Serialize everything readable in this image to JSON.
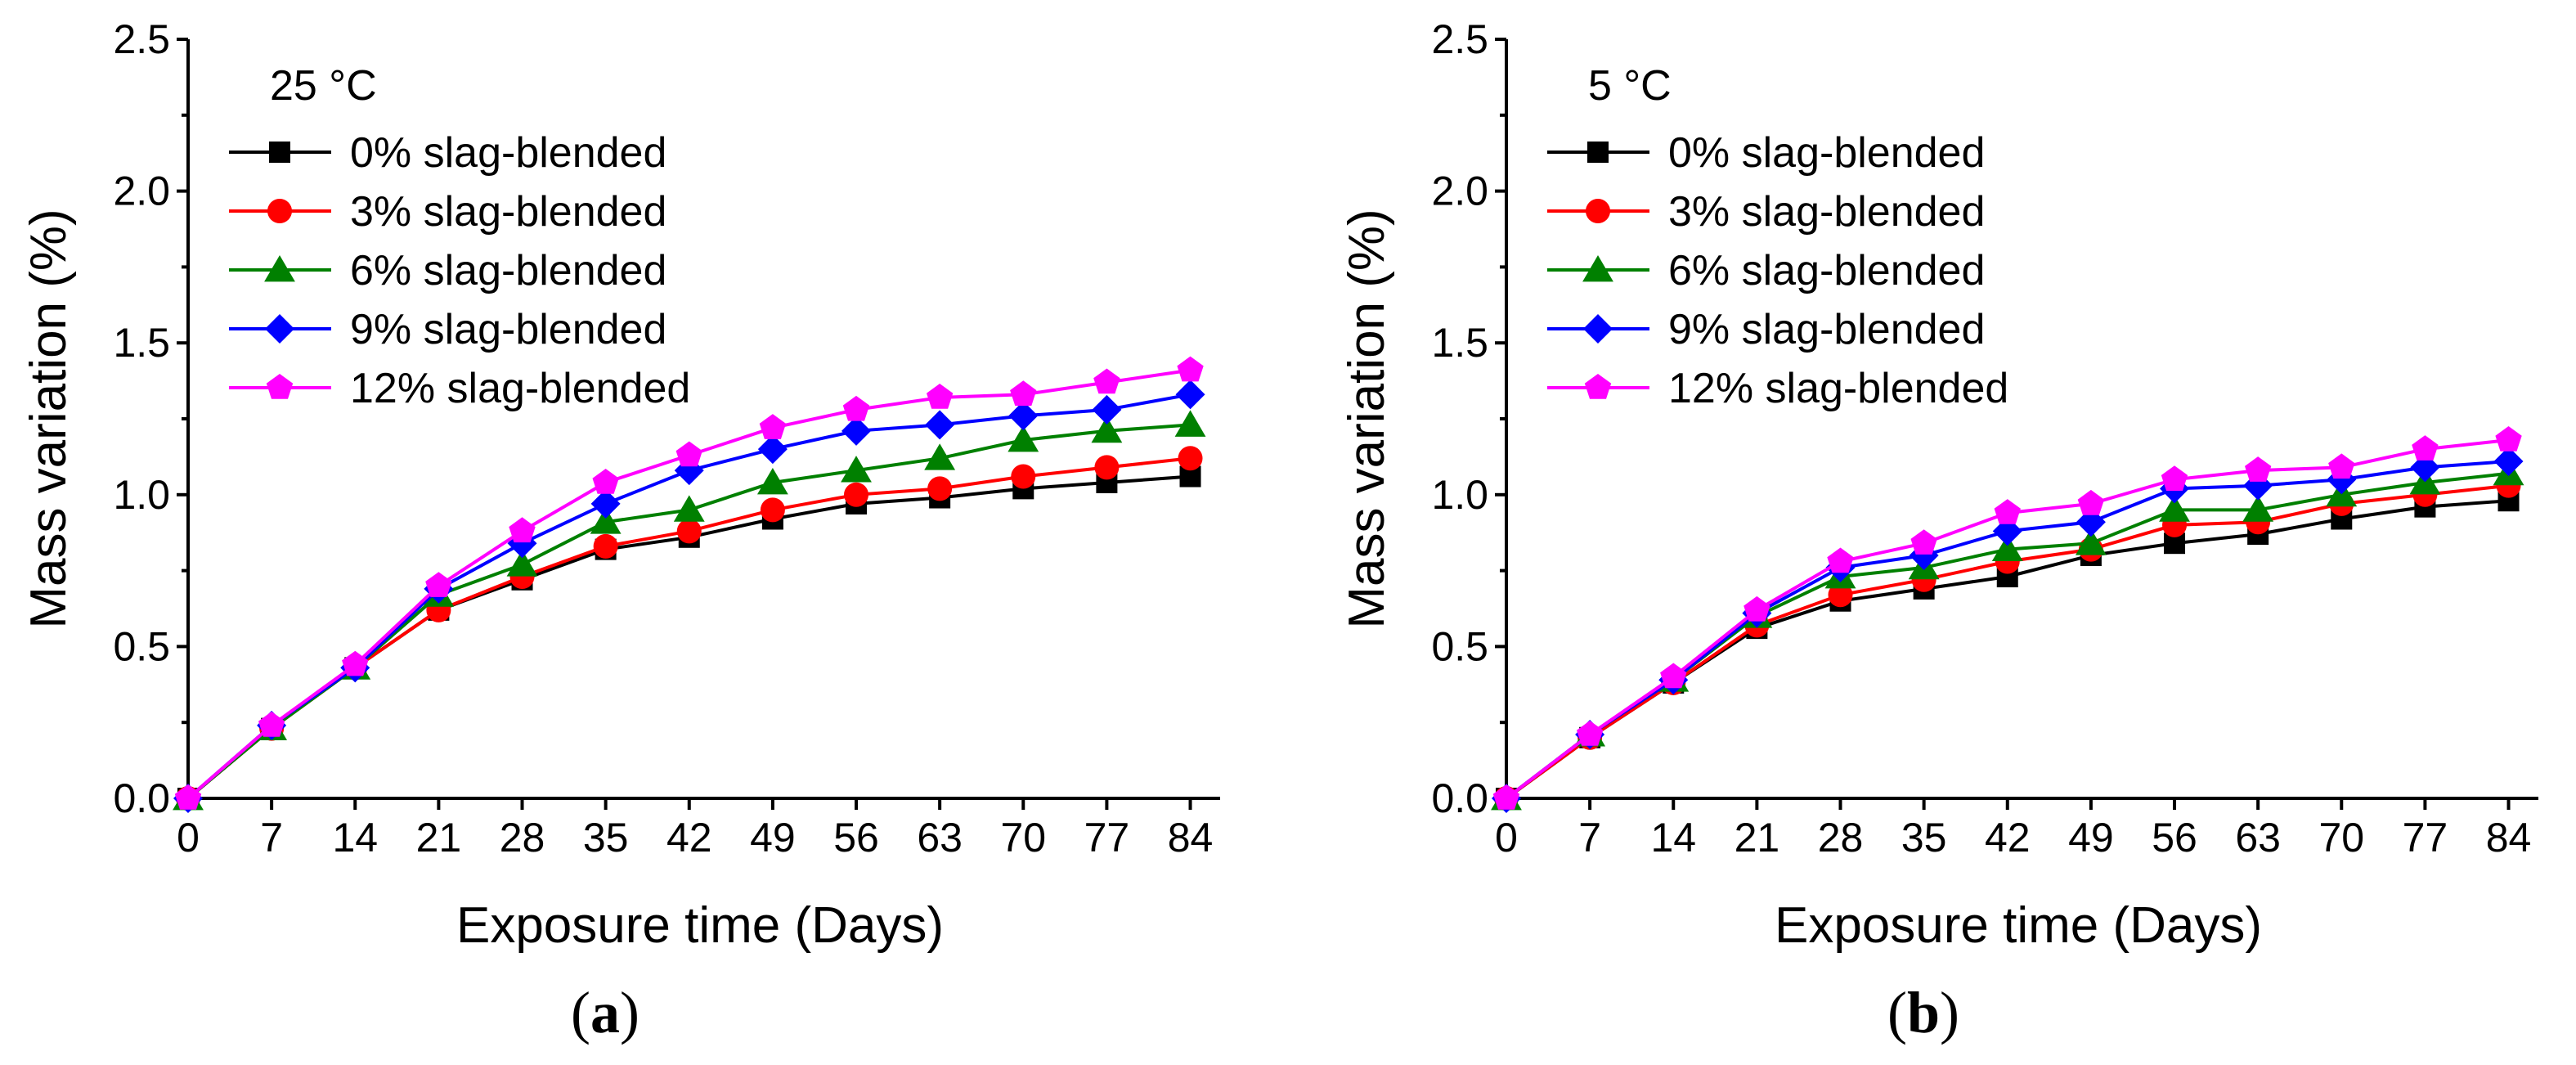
{
  "chart_data": [
    {
      "type": "line",
      "panel_label": "a",
      "annotation": "25 °C",
      "xlabel": "Exposure time (Days)",
      "ylabel": "Mass variation (%)",
      "x": [
        0,
        7,
        14,
        21,
        28,
        35,
        42,
        49,
        56,
        63,
        70,
        77,
        84
      ],
      "xlim": [
        0,
        86.5
      ],
      "ylim": [
        0,
        2.5
      ],
      "xticks": [
        "0",
        "7",
        "14",
        "21",
        "28",
        "35",
        "42",
        "49",
        "56",
        "63",
        "70",
        "77",
        "84"
      ],
      "yticks": [
        "0.0",
        "0.5",
        "1.0",
        "1.5",
        "2.0",
        "2.5"
      ],
      "legend_position": "top-left",
      "series": [
        {
          "name": "0% slag-blended",
          "color": "#000000",
          "marker": "square",
          "values": [
            0.0,
            0.23,
            0.43,
            0.62,
            0.72,
            0.82,
            0.86,
            0.92,
            0.97,
            0.99,
            1.02,
            1.04,
            1.06
          ]
        },
        {
          "name": "3% slag-blended",
          "color": "#ff0000",
          "marker": "circle",
          "values": [
            0.0,
            0.23,
            0.43,
            0.62,
            0.73,
            0.83,
            0.88,
            0.95,
            1.0,
            1.02,
            1.06,
            1.09,
            1.12
          ]
        },
        {
          "name": "6% slag-blended",
          "color": "#008000",
          "marker": "triangle",
          "values": [
            0.0,
            0.23,
            0.43,
            0.67,
            0.77,
            0.91,
            0.95,
            1.04,
            1.08,
            1.12,
            1.18,
            1.21,
            1.23
          ]
        },
        {
          "name": "9% slag-blended",
          "color": "#0000ff",
          "marker": "diamond",
          "values": [
            0.0,
            0.24,
            0.43,
            0.69,
            0.84,
            0.97,
            1.08,
            1.15,
            1.21,
            1.23,
            1.26,
            1.28,
            1.33
          ]
        },
        {
          "name": "12% slag-blended",
          "color": "#ff00ff",
          "marker": "pentagon",
          "values": [
            0.0,
            0.24,
            0.44,
            0.7,
            0.88,
            1.04,
            1.13,
            1.22,
            1.28,
            1.32,
            1.33,
            1.37,
            1.41
          ]
        }
      ]
    },
    {
      "type": "line",
      "panel_label": "b",
      "annotation": "5 °C",
      "xlabel": "Exposure time (Days)",
      "ylabel": "Mass variation (%)",
      "x": [
        0,
        7,
        14,
        21,
        28,
        35,
        42,
        49,
        56,
        63,
        70,
        77,
        84
      ],
      "xlim": [
        0,
        86.5
      ],
      "ylim": [
        0,
        2.5
      ],
      "xticks": [
        "0",
        "7",
        "14",
        "21",
        "28",
        "35",
        "42",
        "49",
        "56",
        "63",
        "70",
        "77",
        "84"
      ],
      "yticks": [
        "0.0",
        "0.5",
        "1.0",
        "1.5",
        "2.0",
        "2.5"
      ],
      "legend_position": "top-left",
      "series": [
        {
          "name": "0% slag-blended",
          "color": "#000000",
          "marker": "square",
          "values": [
            0.0,
            0.2,
            0.38,
            0.56,
            0.65,
            0.69,
            0.73,
            0.8,
            0.84,
            0.87,
            0.92,
            0.96,
            0.98
          ]
        },
        {
          "name": "3% slag-blended",
          "color": "#ff0000",
          "marker": "circle",
          "values": [
            0.0,
            0.2,
            0.38,
            0.57,
            0.67,
            0.72,
            0.78,
            0.82,
            0.9,
            0.91,
            0.97,
            1.0,
            1.03
          ]
        },
        {
          "name": "6% slag-blended",
          "color": "#008000",
          "marker": "triangle",
          "values": [
            0.0,
            0.21,
            0.39,
            0.6,
            0.73,
            0.76,
            0.82,
            0.84,
            0.95,
            0.95,
            1.0,
            1.04,
            1.07
          ]
        },
        {
          "name": "9% slag-blended",
          "color": "#0000ff",
          "marker": "diamond",
          "values": [
            0.0,
            0.21,
            0.39,
            0.61,
            0.76,
            0.8,
            0.88,
            0.91,
            1.02,
            1.03,
            1.05,
            1.09,
            1.11
          ]
        },
        {
          "name": "12% slag-blended",
          "color": "#ff00ff",
          "marker": "pentagon",
          "values": [
            0.0,
            0.21,
            0.4,
            0.62,
            0.78,
            0.84,
            0.94,
            0.97,
            1.05,
            1.08,
            1.09,
            1.15,
            1.18
          ]
        }
      ]
    }
  ]
}
